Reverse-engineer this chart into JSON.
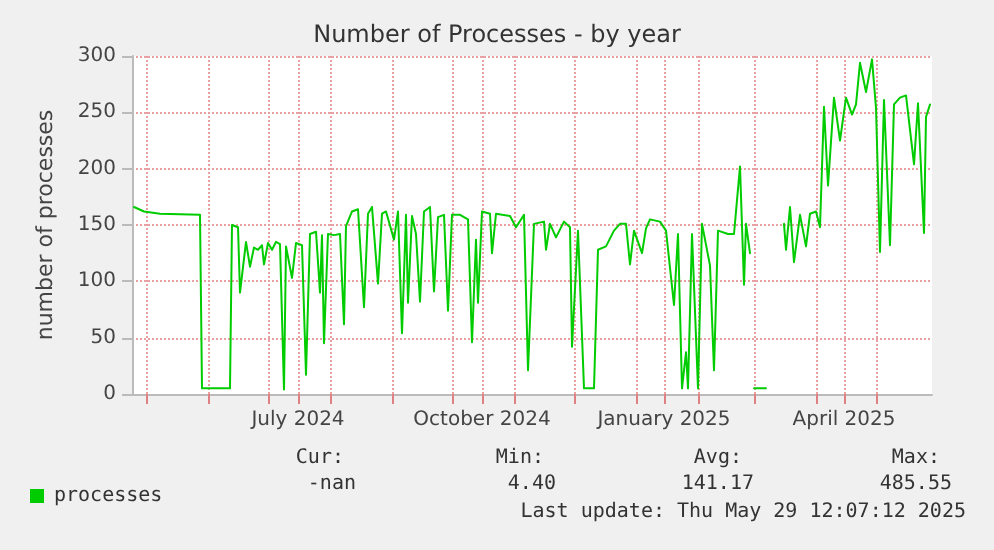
{
  "chart_data": {
    "type": "line",
    "title": "Number of Processes - by year",
    "ylabel": "number of processes",
    "x": [
      "2024-04-25",
      "2024-04-30",
      "2024-05-08",
      "2024-05-28",
      "2024-05-29",
      "2024-06-12",
      "2024-06-13",
      "2024-06-16",
      "2024-06-17",
      "2024-06-20",
      "2024-06-22",
      "2024-06-24",
      "2024-06-26",
      "2024-06-28",
      "2024-06-29",
      "2024-07-01",
      "2024-07-03",
      "2024-07-05",
      "2024-07-07",
      "2024-07-09",
      "2024-07-10",
      "2024-07-13",
      "2024-07-15",
      "2024-07-18",
      "2024-07-20",
      "2024-07-22",
      "2024-07-25",
      "2024-07-27",
      "2024-07-28",
      "2024-07-29",
      "2024-07-31",
      "2024-08-03",
      "2024-08-06",
      "2024-08-08",
      "2024-08-09",
      "2024-08-12",
      "2024-08-15",
      "2024-08-18",
      "2024-08-20",
      "2024-08-22",
      "2024-08-25",
      "2024-08-27",
      "2024-08-29",
      "2024-09-02",
      "2024-09-04",
      "2024-09-06",
      "2024-09-08",
      "2024-09-09",
      "2024-09-11",
      "2024-09-13",
      "2024-09-15",
      "2024-09-17",
      "2024-09-20",
      "2024-09-22",
      "2024-09-24",
      "2024-09-27",
      "2024-09-29",
      "2024-10-01",
      "2024-10-05",
      "2024-10-09",
      "2024-10-11",
      "2024-10-13",
      "2024-10-14",
      "2024-10-16",
      "2024-10-20",
      "2024-10-21",
      "2024-10-23",
      "2024-10-30",
      "2024-11-02",
      "2024-11-06",
      "2024-11-08",
      "2024-11-11",
      "2024-11-16",
      "2024-11-17",
      "2024-11-19",
      "2024-11-22",
      "2024-11-26",
      "2024-11-29",
      "2024-11-30",
      "2024-12-03",
      "2024-12-06",
      "2024-12-11",
      "2024-12-13",
      "2024-12-17",
      "2024-12-21",
      "2024-12-24",
      "2024-12-27",
      "2024-12-29",
      "2024-12-31",
      "2025-01-04",
      "2025-01-06",
      "2025-01-08",
      "2025-01-13",
      "2025-01-16",
      "2025-01-20",
      "2025-01-22",
      "2025-01-24",
      "2025-01-26",
      "2025-01-27",
      "2025-01-29",
      "2025-02-01",
      "2025-02-03",
      "2025-02-07",
      "2025-02-09",
      "2025-02-11",
      "2025-02-16",
      "2025-02-19",
      "2025-02-22",
      "2025-02-24",
      "2025-02-25",
      "2025-02-27",
      "2025-02-28",
      "2025-03-01",
      "2025-03-07",
      "2025-03-10",
      "2025-03-16",
      "2025-03-17",
      "2025-03-19",
      "2025-03-21",
      "2025-03-24",
      "2025-03-27",
      "2025-03-29",
      "2025-04-01",
      "2025-04-03",
      "2025-04-05",
      "2025-04-07",
      "2025-04-10",
      "2025-04-13",
      "2025-04-16",
      "2025-04-19",
      "2025-04-21",
      "2025-04-23",
      "2025-04-26",
      "2025-04-29",
      "2025-05-01",
      "2025-05-03",
      "2025-05-05",
      "2025-05-08",
      "2025-05-10",
      "2025-05-13",
      "2025-05-16",
      "2025-05-20",
      "2025-05-22",
      "2025-05-25",
      "2025-05-26",
      "2025-05-28"
    ],
    "series": [
      {
        "name": "processes",
        "color": "#00cc00",
        "values": [
          166,
          162,
          160,
          159,
          5,
          5,
          150,
          148,
          90,
          135,
          113,
          130,
          128,
          132,
          115,
          134,
          128,
          135,
          133,
          4,
          131,
          103,
          134,
          132,
          17,
          142,
          144,
          90,
          141,
          45,
          142,
          141,
          142,
          62,
          149,
          162,
          164,
          77,
          160,
          166,
          98,
          160,
          162,
          137,
          162,
          54,
          159,
          81,
          158,
          142,
          82,
          162,
          166,
          91,
          157,
          159,
          74,
          159,
          159,
          155,
          46,
          137,
          81,
          162,
          160,
          125,
          160,
          158,
          148,
          159,
          21,
          151,
          153,
          128,
          151,
          139,
          153,
          148,
          42,
          145,
          5,
          5,
          128,
          131,
          145,
          151,
          151,
          115,
          145,
          125,
          147,
          155,
          153,
          145,
          79,
          142,
          5,
          37,
          5,
          142,
          5,
          151,
          114,
          21,
          145,
          142,
          142,
          202,
          97,
          151,
          125,
          null,
          5,
          5,
          null,
          151,
          128,
          166,
          117,
          159,
          131,
          160,
          162,
          148,
          255,
          185,
          263,
          225,
          263,
          248,
          257,
          294,
          268,
          297,
          254,
          126,
          261,
          132,
          257,
          263,
          265,
          204,
          258,
          143,
          246,
          257
        ]
      }
    ],
    "xlim": [
      "2024-04-24",
      "2025-05-29"
    ],
    "xticks": [
      {
        "value": "2024-05-01",
        "label": null
      },
      {
        "value": "2024-06-01",
        "label": null
      },
      {
        "value": "2024-07-01",
        "label": null
      },
      {
        "value": "2024-07-16",
        "label": "July 2024"
      },
      {
        "value": "2024-08-01",
        "label": null
      },
      {
        "value": "2024-09-01",
        "label": null
      },
      {
        "value": "2024-10-01",
        "label": null
      },
      {
        "value": "2024-10-16",
        "label": "October 2024"
      },
      {
        "value": "2024-11-01",
        "label": null
      },
      {
        "value": "2024-12-01",
        "label": null
      },
      {
        "value": "2025-01-01",
        "label": null
      },
      {
        "value": "2025-01-15",
        "label": "January 2025"
      },
      {
        "value": "2025-02-01",
        "label": null
      },
      {
        "value": "2025-03-01",
        "label": null
      },
      {
        "value": "2025-04-01",
        "label": null
      },
      {
        "value": "2025-04-15",
        "label": "April 2025"
      },
      {
        "value": "2025-05-01",
        "label": null
      }
    ],
    "ylim": [
      0,
      300
    ],
    "yticks": [
      0,
      50,
      100,
      150,
      200,
      250,
      300
    ],
    "grid": true,
    "legend": "bottom left",
    "marker": "none",
    "line_style": "solid",
    "annotations": [
      "Cur:",
      "Min:",
      "Avg:",
      "Max:",
      "-nan",
      "4.40",
      "141.17",
      "485.55",
      "Last update: Thu May 29 12:07:12 2025"
    ]
  }
}
